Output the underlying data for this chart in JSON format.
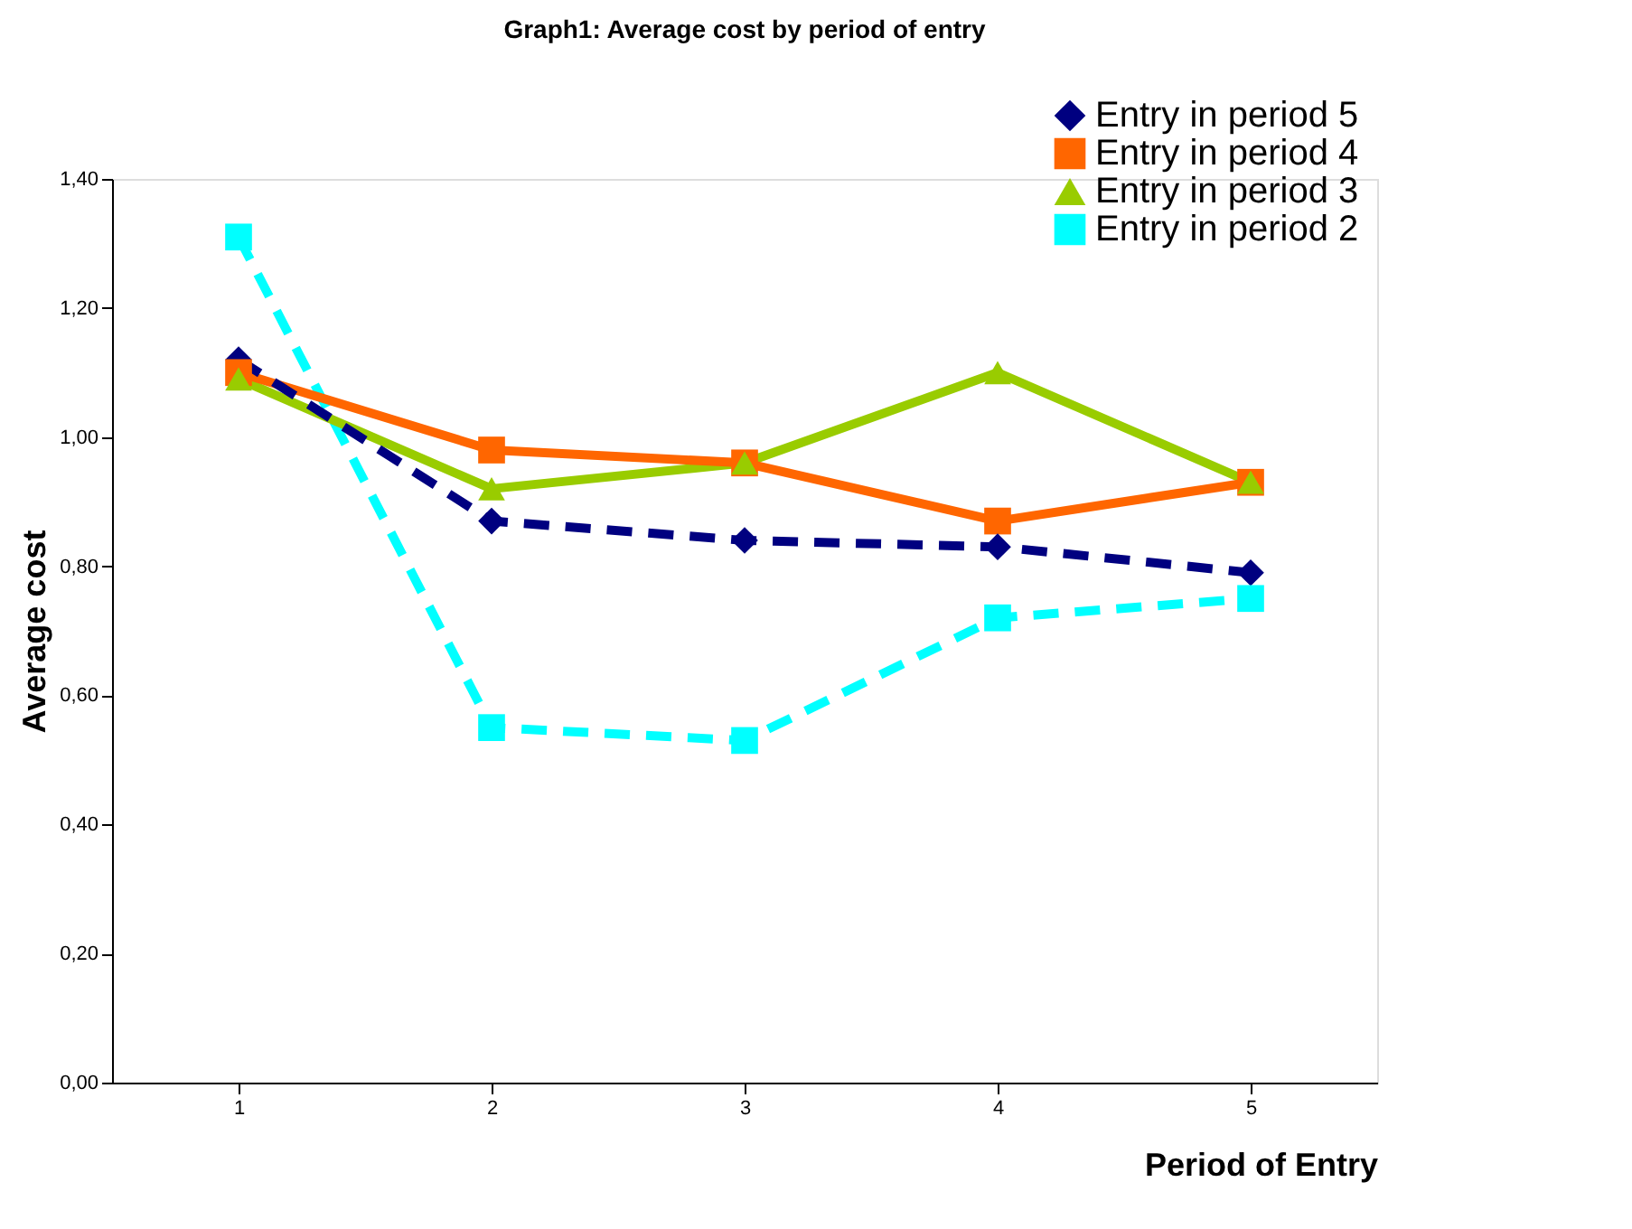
{
  "chart_data": {
    "type": "line",
    "title": "Graph1: Average cost by period of entry",
    "xlabel": "Period of Entry",
    "ylabel": "Average cost",
    "categories": [
      "1",
      "2",
      "3",
      "4",
      "5"
    ],
    "series": [
      {
        "name": "Entry in period 5",
        "color": "#000080",
        "values": [
          1.12,
          0.87,
          0.84,
          0.83,
          0.79
        ],
        "marker": "diamond",
        "line_style": "dashed"
      },
      {
        "name": "Entry in period 4",
        "color": "#ff6600",
        "values": [
          1.1,
          0.98,
          0.96,
          0.87,
          0.93
        ],
        "marker": "square",
        "line_style": "solid"
      },
      {
        "name": "Entry in period 3",
        "color": "#99cc00",
        "values": [
          1.09,
          0.92,
          0.96,
          1.1,
          0.93
        ],
        "marker": "triangle",
        "line_style": "solid"
      },
      {
        "name": "Entry in period 2",
        "color": "#00ffff",
        "values": [
          1.31,
          0.55,
          0.53,
          0.72,
          0.75
        ],
        "marker": "square",
        "line_style": "dashed"
      }
    ],
    "ylim": [
      0,
      1.4
    ],
    "yticks": [
      {
        "value": 0,
        "label": "0,00"
      },
      {
        "value": 0.2,
        "label": "0,20"
      },
      {
        "value": 0.4,
        "label": "0,40"
      },
      {
        "value": 0.6,
        "label": "0,60"
      },
      {
        "value": 0.8,
        "label": "0,80"
      },
      {
        "value": 1.0,
        "label": "1,00"
      },
      {
        "value": 1.2,
        "label": "1,20"
      },
      {
        "value": 1.4,
        "label": "1,40"
      }
    ],
    "grid": false,
    "legend": "top right"
  }
}
